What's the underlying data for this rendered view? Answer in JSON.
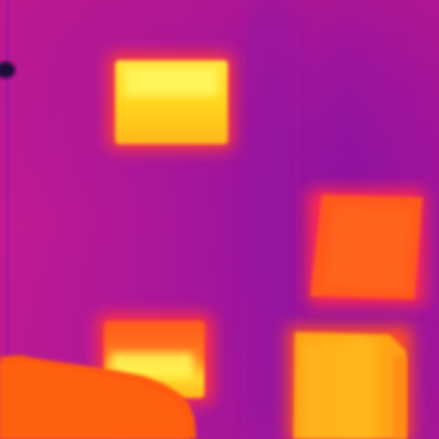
{
  "image": {
    "kind": "thermal-camera-frame",
    "palette": "ironbow",
    "palette_colors": {
      "cool": "#8a12a0",
      "mid": "#c21a8a",
      "warm": "#ff5a1e",
      "hot": "#ffb000",
      "hottest": "#ffff55"
    }
  }
}
